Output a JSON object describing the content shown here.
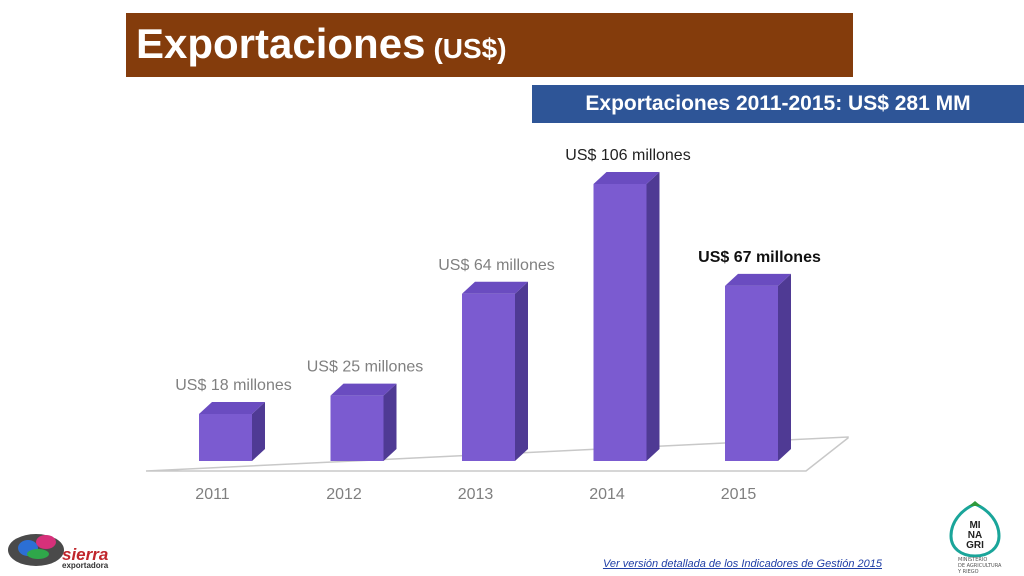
{
  "header": {
    "title": "Exportaciones",
    "title_suffix": "(US$)"
  },
  "summary": "Exportaciones 2011-2015: US$ 281 MM",
  "chart_data": {
    "type": "bar",
    "categories": [
      "2011",
      "2012",
      "2013",
      "2014",
      "2015"
    ],
    "values": [
      18,
      25,
      64,
      106,
      67
    ],
    "labels": [
      "US$ 18 millones",
      "US$ 25 millones",
      "US$ 64 millones",
      "US$ 106 millones",
      "US$ 67 millones"
    ],
    "label_colors": [
      "#808080",
      "#808080",
      "#808080",
      "#222222",
      "#111111"
    ],
    "label_bold": [
      false,
      false,
      false,
      false,
      true
    ],
    "title": "",
    "xlabel": "",
    "ylabel": "",
    "ylim": [
      0,
      106
    ],
    "grid": false,
    "legend": "none",
    "bar_color": "#7b5bd0",
    "bar_side_color": "#4f3a94",
    "bar_top_color": "#6a4cc0"
  },
  "footer": {
    "link_text": "Ver versión detallada de los Indicadores de Gestión 2015",
    "left_logo": {
      "line1": "sierra",
      "line2": "exportadora"
    },
    "right_logo": {
      "lines": [
        "MI",
        "NA",
        "GRI"
      ],
      "caption": [
        "MINISTERIO",
        "DE AGRICULTURA",
        "Y RIEGO"
      ]
    }
  },
  "colors": {
    "title_bar": "#843c0c",
    "summary_box": "#2e5597",
    "link": "#1f3ea6"
  }
}
